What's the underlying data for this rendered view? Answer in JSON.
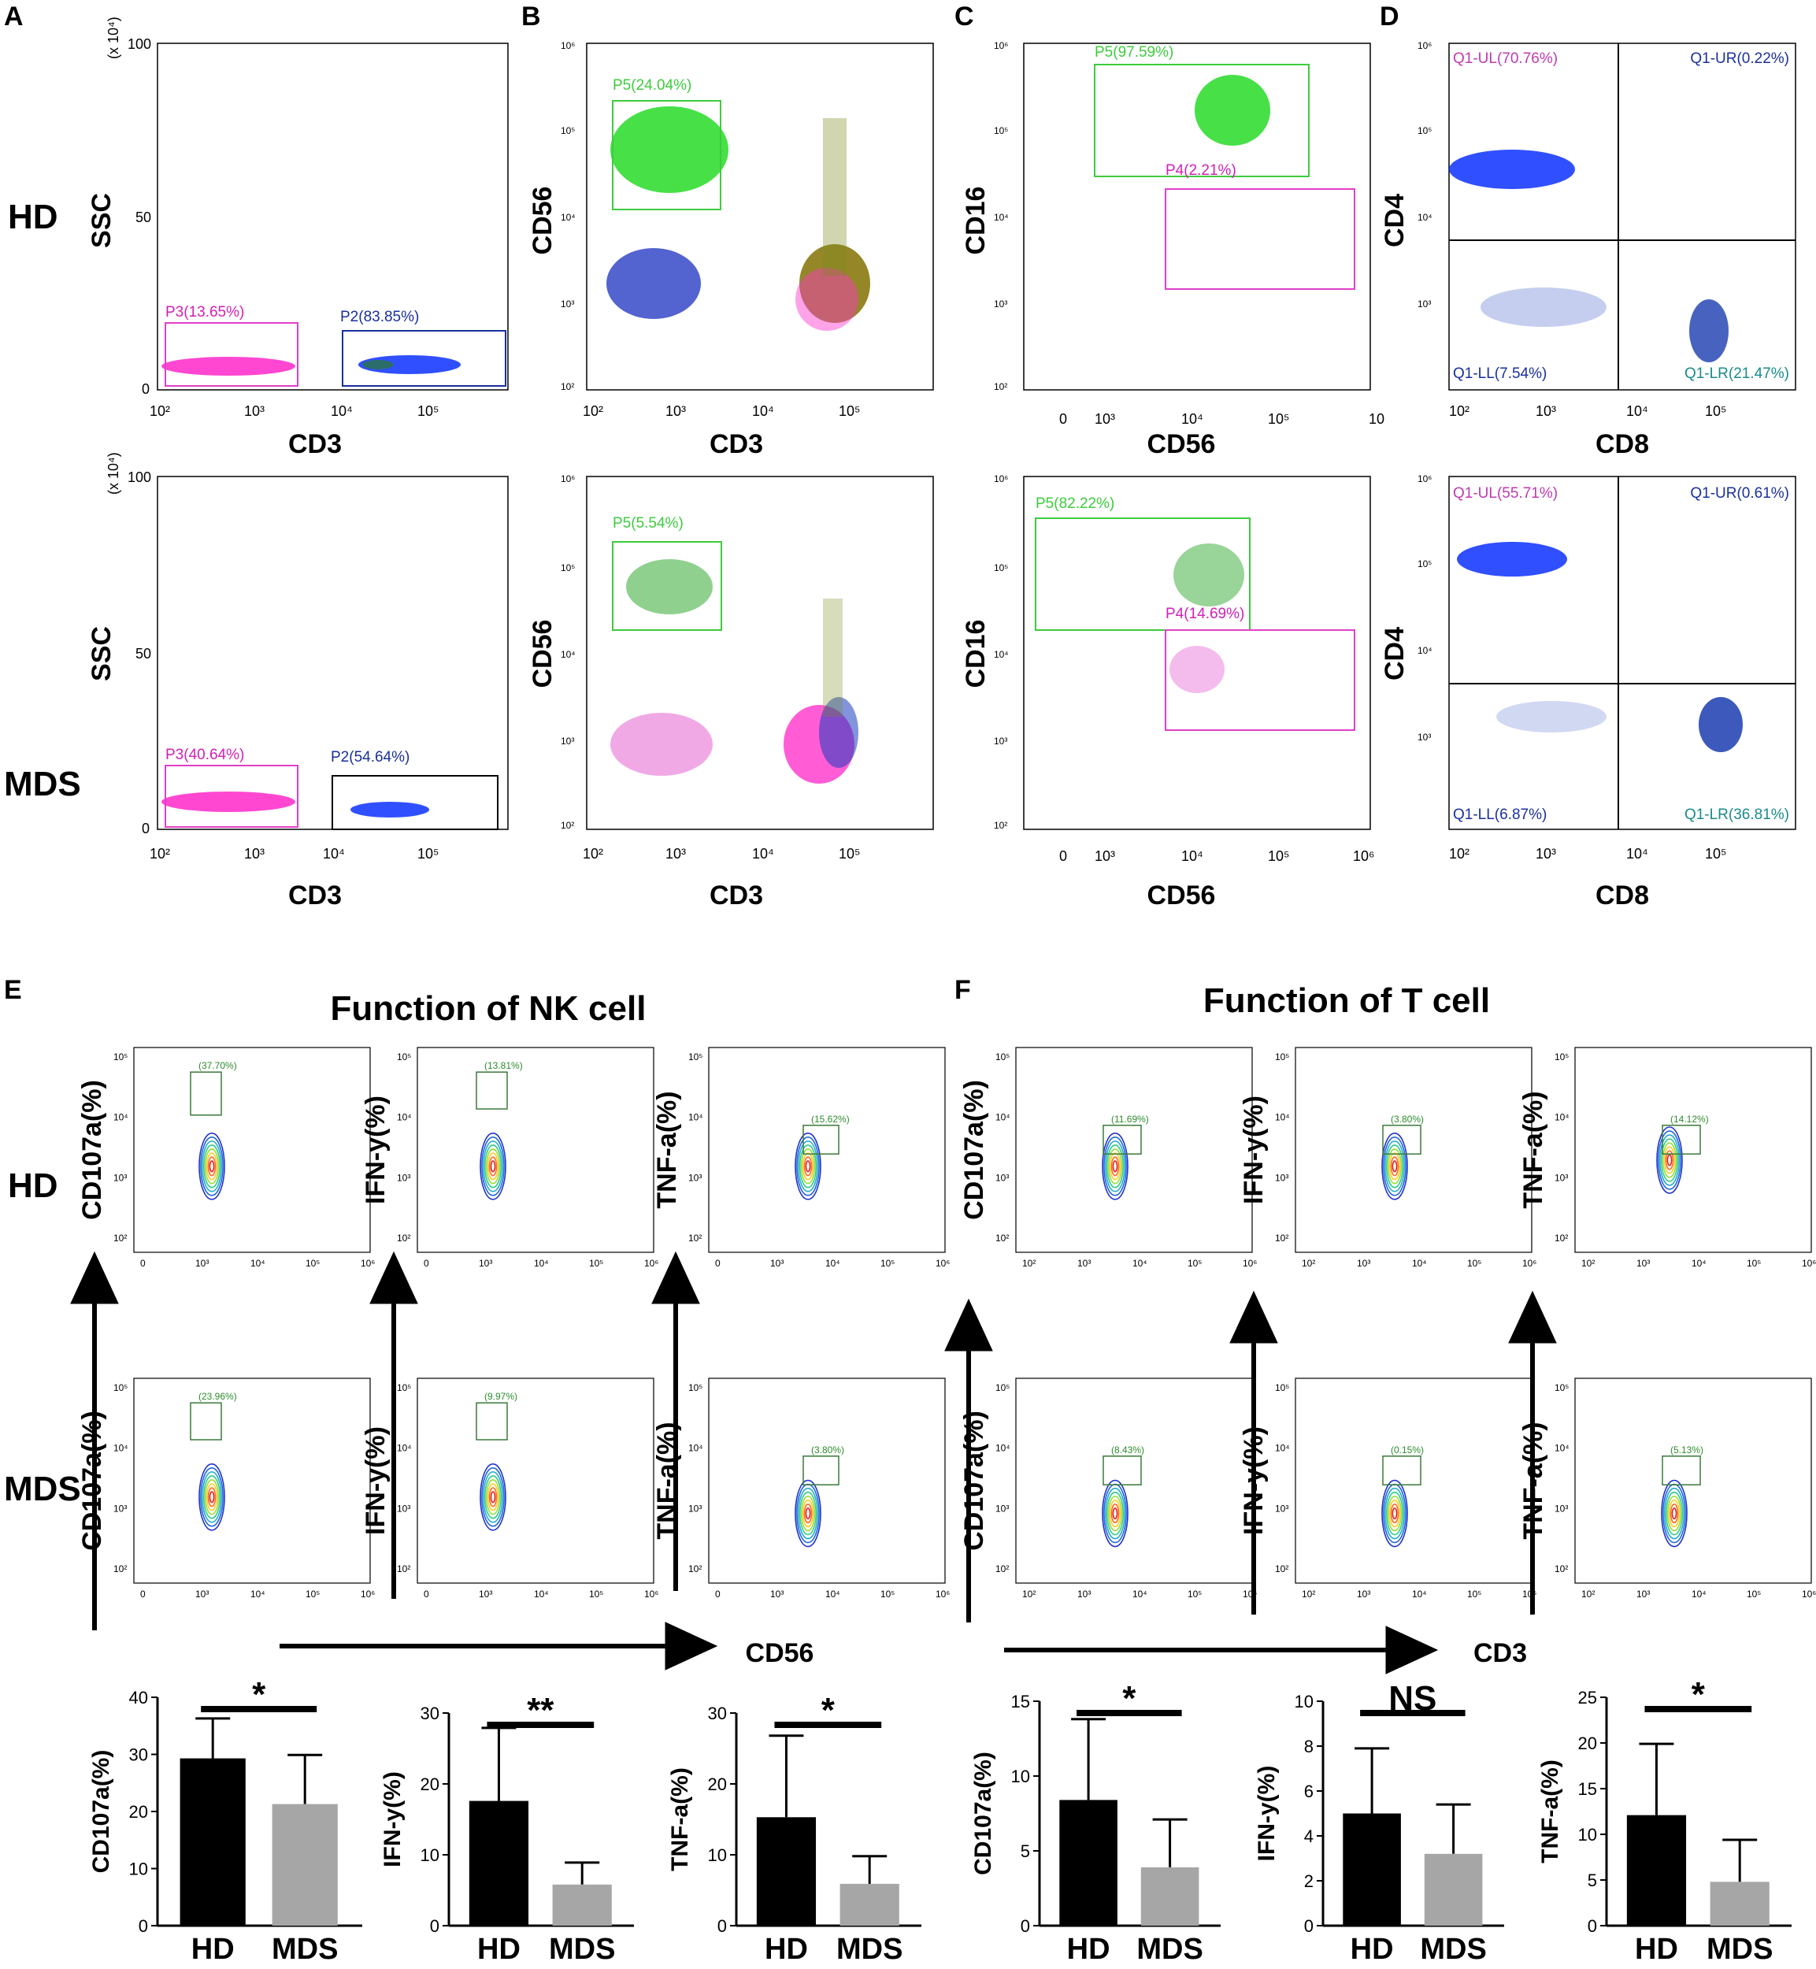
{
  "panel_letters": [
    "A",
    "B",
    "C",
    "D",
    "E",
    "F"
  ],
  "row_labels": {
    "hd": "HD",
    "mds": "MDS"
  },
  "axes": {
    "ssc": "SSC",
    "cd3": "CD3",
    "cd56": "CD56",
    "cd16": "CD16",
    "cd4": "CD4",
    "cd8": "CD8",
    "x1e4": "(x 10⁴)",
    "ssc_ticks": [
      "0",
      "50",
      "100"
    ],
    "log_ticks": [
      "10²",
      "10³",
      "10⁴",
      "10⁵",
      "10⁶"
    ],
    "log_ticks_c": [
      "0",
      "10³",
      "10⁴",
      "10⁵",
      "10"
    ],
    "log_ticks_c2": [
      "0",
      "10³",
      "10⁴",
      "10⁵",
      "10⁶"
    ]
  },
  "gates": {
    "a_hd": [
      "P3(13.65%)",
      "P2(83.85%)"
    ],
    "a_mds": [
      "P3(40.64%)",
      "P2(54.64%)"
    ],
    "b_hd": "P5(24.04%)",
    "b_mds": "P5(5.54%)",
    "c_hd": [
      "P5(97.59%)",
      "P4(2.21%)"
    ],
    "c_mds": [
      "P5(82.22%)",
      "P4(14.69%)"
    ],
    "d_hd": [
      "Q1-UL(70.76%)",
      "Q1-UR(0.22%)",
      "Q1-LL(7.54%)",
      "Q1-LR(21.47%)"
    ],
    "d_mds": [
      "Q1-UL(55.71%)",
      "Q1-UR(0.61%)",
      "Q1-LL(6.87%)",
      "Q1-LR(36.81%)"
    ]
  },
  "function_titles": {
    "nk": "Function of NK cell",
    "t": "Function of  T cell"
  },
  "contour_ylabels": [
    "CD107a(%)",
    "IFN-y(%)",
    "TNF-a(%)"
  ],
  "contour_gates": {
    "nk_hd": [
      "(37.70%)",
      "(13.81%)",
      "(15.62%)"
    ],
    "nk_mds": [
      "(23.96%)",
      "(9.97%)",
      "(3.80%)"
    ],
    "t_hd": [
      "(11.69%)",
      "(3.80%)",
      "(14.12%)"
    ],
    "t_mds": [
      "(8.43%)",
      "(0.15%)",
      "(5.13%)"
    ]
  },
  "small_log_ticks": [
    "0",
    "10³",
    "10⁴",
    "10⁵",
    "10⁶"
  ],
  "small_log_ticks_t": [
    "10²",
    "10³",
    "10⁴",
    "10⁵",
    "10⁶"
  ],
  "small_y_ticks": [
    "10²",
    "10³",
    "10⁴",
    "10⁵"
  ],
  "arrow_labels": {
    "nk": "CD56",
    "t": "CD3"
  },
  "chart_data": [
    {
      "type": "bar",
      "title": "",
      "xlabel": "",
      "ylabel": "CD107a(%)",
      "categories": [
        "HD",
        "MDS"
      ],
      "values": [
        29.3,
        21.3
      ],
      "errors": [
        7.0,
        8.6
      ],
      "ylim": [
        0,
        40
      ],
      "yticks": [
        "0",
        "10",
        "20",
        "30",
        "40"
      ],
      "significance": "*",
      "colors": [
        "#000000",
        "#a6a6a6"
      ]
    },
    {
      "type": "bar",
      "title": "",
      "xlabel": "",
      "ylabel": "IFN-y(%)",
      "categories": [
        "HD",
        "MDS"
      ],
      "values": [
        17.6,
        5.8
      ],
      "errors": [
        10.3,
        3.1
      ],
      "ylim": [
        0,
        30
      ],
      "yticks": [
        "0",
        "10",
        "20",
        "30"
      ],
      "significance": "**",
      "colors": [
        "#000000",
        "#a6a6a6"
      ]
    },
    {
      "type": "bar",
      "title": "",
      "xlabel": "",
      "ylabel": "TNF-a(%)",
      "categories": [
        "HD",
        "MDS"
      ],
      "values": [
        15.3,
        5.9
      ],
      "errors": [
        11.5,
        3.9
      ],
      "ylim": [
        0,
        30
      ],
      "yticks": [
        "0",
        "10",
        "20",
        "30"
      ],
      "significance": "*",
      "colors": [
        "#000000",
        "#a6a6a6"
      ]
    },
    {
      "type": "bar",
      "title": "",
      "xlabel": "",
      "ylabel": "CD107a(%)",
      "categories": [
        "HD",
        "MDS"
      ],
      "values": [
        8.4,
        3.9
      ],
      "errors": [
        5.4,
        3.2
      ],
      "ylim": [
        0,
        15
      ],
      "yticks": [
        "0",
        "5",
        "10",
        "15"
      ],
      "significance": "*",
      "colors": [
        "#000000",
        "#a6a6a6"
      ]
    },
    {
      "type": "bar",
      "title": "",
      "xlabel": "",
      "ylabel": "IFN-y(%)",
      "categories": [
        "HD",
        "MDS"
      ],
      "values": [
        5.0,
        3.2
      ],
      "errors": [
        2.9,
        2.2
      ],
      "ylim": [
        0,
        10
      ],
      "yticks": [
        "0",
        "2",
        "4",
        "6",
        "8",
        "10"
      ],
      "significance": "NS",
      "colors": [
        "#000000",
        "#a6a6a6"
      ]
    },
    {
      "type": "bar",
      "title": "",
      "xlabel": "",
      "ylabel": "TNF-a(%)",
      "categories": [
        "HD",
        "MDS"
      ],
      "values": [
        12.1,
        4.8
      ],
      "errors": [
        7.8,
        4.6
      ],
      "ylim": [
        0,
        25
      ],
      "yticks": [
        "0",
        "5",
        "10",
        "15",
        "20",
        "25"
      ],
      "significance": "*",
      "colors": [
        "#000000",
        "#a6a6a6"
      ]
    }
  ]
}
